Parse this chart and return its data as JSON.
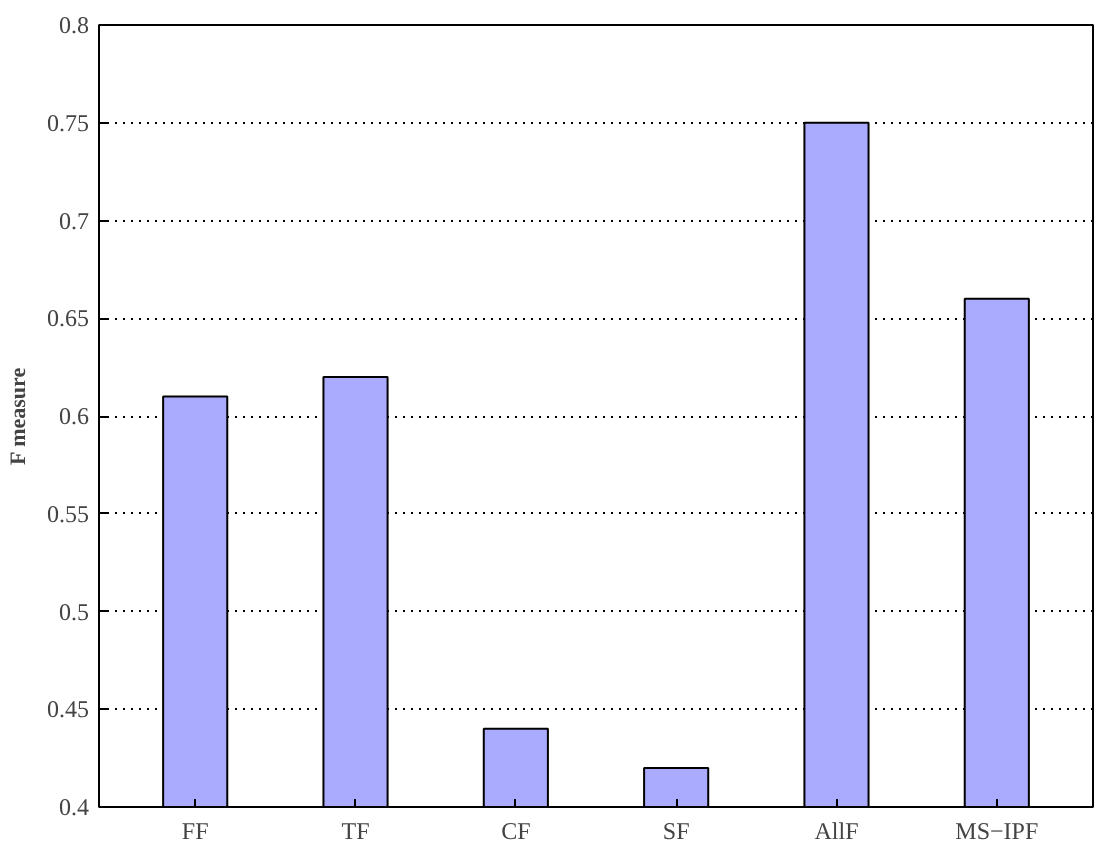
{
  "chart_data": {
    "type": "bar",
    "ylabel": "F measure",
    "categories": [
      "FF",
      "TF",
      "CF",
      "SF",
      "AllF",
      "MS−IPF"
    ],
    "values": [
      0.61,
      0.62,
      0.44,
      0.42,
      0.75,
      0.66
    ],
    "color": "#aaaaff",
    "ylim": [
      0.4,
      0.8
    ],
    "yticks": [
      0.4,
      0.45,
      0.5,
      0.55,
      0.6,
      0.65,
      0.7,
      0.75,
      0.8
    ],
    "grid": "y"
  }
}
